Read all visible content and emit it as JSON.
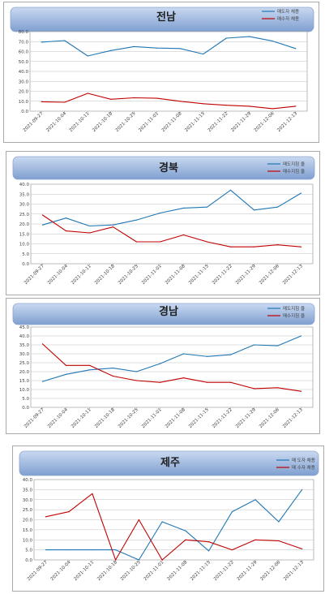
{
  "chart_data": [
    {
      "type": "line",
      "title": "전남",
      "categories": [
        "2021-09-27",
        "2021-10-04",
        "2021-10-11",
        "2021-10-18",
        "2021-10-25",
        "2021-11-01",
        "2021-11-08",
        "2021-11-15",
        "2021-11-22",
        "2021-11-29",
        "2021-12-06",
        "2021-12-13"
      ],
      "yticks": [
        "0.0",
        "10.0",
        "20.0",
        "30.0",
        "40.0",
        "50.0",
        "60.0",
        "70.0",
        "80.0"
      ],
      "ylim": [
        0,
        80
      ],
      "series": [
        {
          "name": "매도자 채용",
          "color": "#1f77b4",
          "values": [
            69.5,
            71.0,
            55.5,
            61.0,
            65.0,
            63.5,
            63.0,
            57.5,
            73.5,
            75.0,
            70.5,
            63.0
          ]
        },
        {
          "name": "매수자 채용",
          "color": "#c00000",
          "values": [
            9.5,
            9.0,
            18.0,
            12.0,
            13.5,
            13.0,
            10.0,
            7.5,
            6.0,
            5.0,
            2.5,
            5.0
          ]
        }
      ],
      "legend": "top-right",
      "grid": true
    },
    {
      "type": "line",
      "title": "경북",
      "categories": [
        "2021-09-27",
        "2021-10-04",
        "2021-10-11",
        "2021-10-18",
        "2021-10-25",
        "2021-11-01",
        "2021-11-08",
        "2021-11-15",
        "2021-11-22",
        "2021-11-29",
        "2021-12-06",
        "2021-12-13"
      ],
      "yticks": [
        "0.0",
        "5.0",
        "10.0",
        "15.0",
        "20.0",
        "25.0",
        "30.0",
        "35.0",
        "40.0"
      ],
      "ylim": [
        0,
        40
      ],
      "series": [
        {
          "name": "매도지침 율",
          "color": "#1f77b4",
          "values": [
            19.5,
            23.0,
            19.0,
            19.5,
            22.0,
            25.5,
            28.0,
            28.5,
            37.0,
            27.0,
            28.5,
            35.5
          ]
        },
        {
          "name": "매수지침 율",
          "color": "#c00000",
          "values": [
            24.5,
            16.5,
            15.5,
            18.5,
            11.0,
            11.0,
            14.5,
            11.0,
            8.5,
            8.5,
            9.5,
            8.5
          ]
        }
      ],
      "legend": "top-right",
      "grid": true
    },
    {
      "type": "line",
      "title": "경남",
      "categories": [
        "2021-09-27",
        "2021-10-04",
        "2021-10-11",
        "2021-10-18",
        "2021-10-25",
        "2021-11-01",
        "2021-11-08",
        "2021-11-15",
        "2021-11-22",
        "2021-11-29",
        "2021-12-06",
        "2021-12-13"
      ],
      "yticks": [
        "0.0",
        "5.0",
        "10.0",
        "15.0",
        "20.0",
        "25.0",
        "30.0",
        "35.0",
        "40.0",
        "45.0"
      ],
      "ylim": [
        0,
        45
      ],
      "series": [
        {
          "name": "매도지침 율",
          "color": "#1f77b4",
          "values": [
            14.5,
            18.5,
            21.0,
            22.0,
            20.0,
            24.5,
            30.0,
            28.5,
            29.5,
            35.0,
            34.5,
            40.0
          ]
        },
        {
          "name": "매수지침 율",
          "color": "#c00000",
          "values": [
            35.5,
            23.5,
            23.5,
            17.5,
            15.0,
            14.0,
            16.5,
            14.0,
            14.0,
            10.5,
            11.0,
            9.0
          ]
        }
      ],
      "legend": "top-right",
      "grid": true
    },
    {
      "type": "line",
      "title": "제주",
      "categories": [
        "2021-09-27",
        "2021-10-04",
        "2021-10-11",
        "2021-10-18",
        "2021-10-25",
        "2021-11-01",
        "2021-11-08",
        "2021-11-15",
        "2021-11-22",
        "2021-11-29",
        "2021-12-06",
        "2021-12-13"
      ],
      "yticks": [
        "0.0",
        "5.0",
        "10.0",
        "15.0",
        "20.0",
        "25.0",
        "30.0",
        "35.0",
        "40.0"
      ],
      "ylim": [
        0,
        40
      ],
      "series": [
        {
          "name": "매 도자 채용",
          "color": "#1f77b4",
          "values": [
            5.0,
            5.0,
            5.0,
            5.0,
            0.0,
            19.0,
            14.5,
            4.5,
            24.0,
            30.0,
            19.0,
            35.0
          ]
        },
        {
          "name": "매 수자 채용",
          "color": "#c00000",
          "values": [
            21.5,
            24.0,
            33.0,
            0.0,
            20.0,
            0.0,
            10.0,
            9.0,
            5.0,
            10.0,
            9.5,
            5.5
          ]
        }
      ],
      "legend": "top-right",
      "grid": true
    }
  ]
}
